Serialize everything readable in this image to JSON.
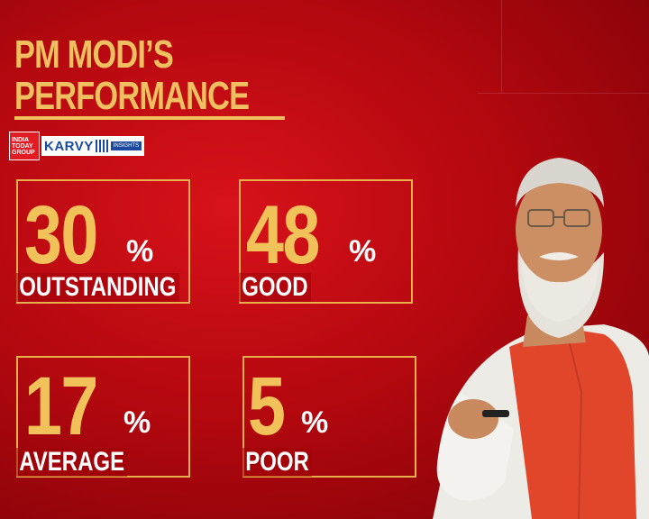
{
  "title": {
    "line1": "PM MODI’S",
    "line2": "PERFORMANCE"
  },
  "logos": {
    "itg": [
      "INDIA",
      "TODAY",
      "GROUP"
    ],
    "karvy": "KARVY",
    "insights": "INSIGHTS"
  },
  "stats": [
    {
      "value": "30",
      "unit": "%",
      "label": "OUTSTANDING"
    },
    {
      "value": "48",
      "unit": "%",
      "label": "GOOD"
    },
    {
      "value": "17",
      "unit": "%",
      "label": "AVERAGE"
    },
    {
      "value": "5",
      "unit": "%",
      "label": "POOR"
    }
  ],
  "colors": {
    "accent": "#f2c25a",
    "background": "#c20a12",
    "label": "#ffffff"
  }
}
